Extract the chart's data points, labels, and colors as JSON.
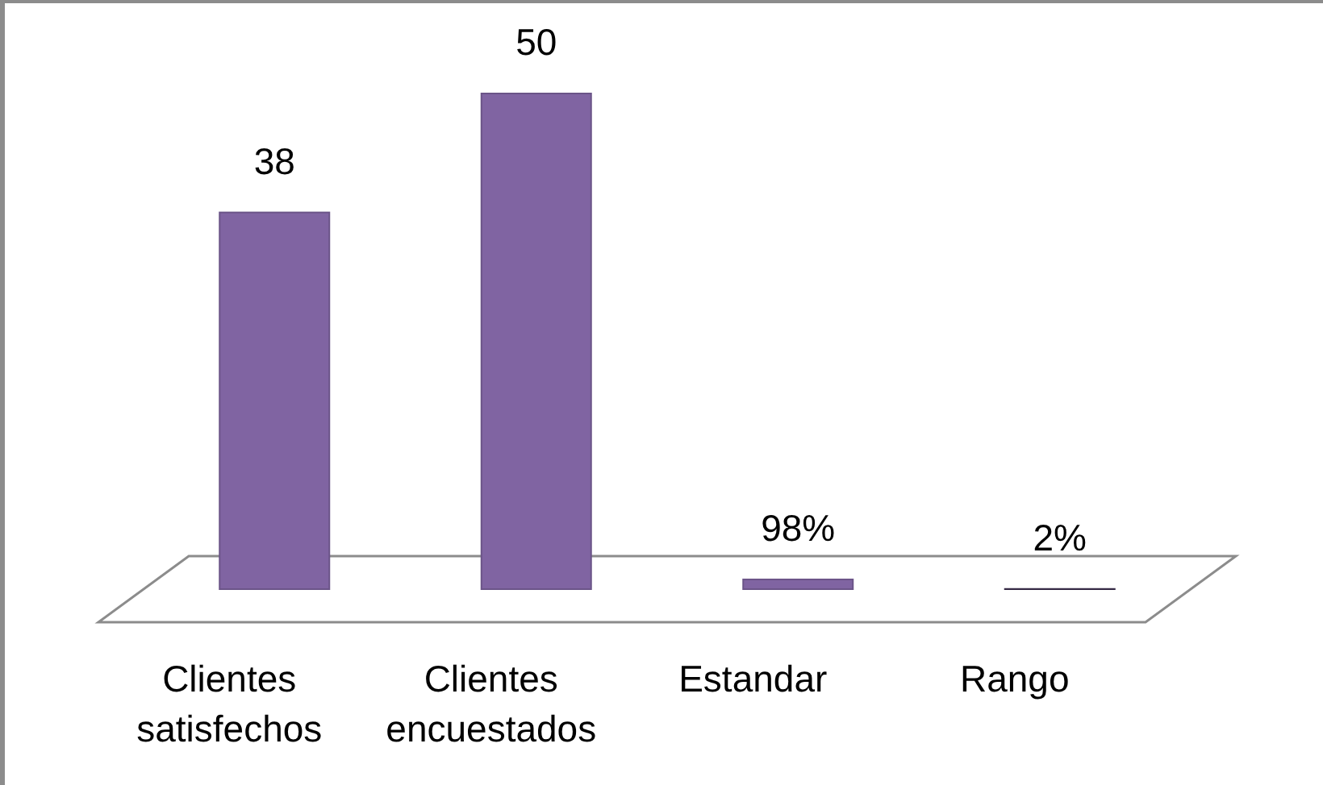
{
  "chart_data": {
    "type": "bar",
    "categories": [
      "Clientes satisfechos",
      "Clientes encuestados",
      "Estandar",
      "Rango"
    ],
    "values": [
      38,
      50,
      0.98,
      0.02
    ],
    "colors": [
      "#8064a2",
      "#8064a2",
      "#8064a2",
      "#3f3151"
    ],
    "value_labels": [
      "38",
      "50",
      "98%",
      "2%"
    ]
  }
}
